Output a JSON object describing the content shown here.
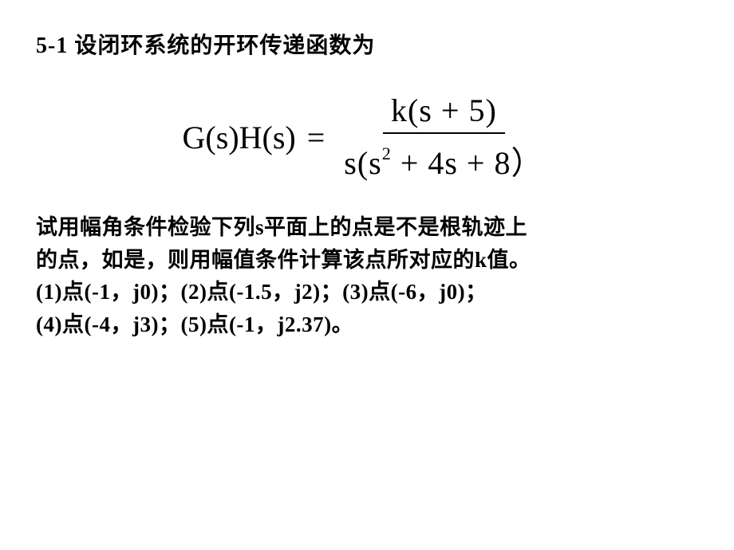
{
  "title": {
    "number": "5-1",
    "text": "设闭环系统的开环传递函数为"
  },
  "equation": {
    "lhs": "G(s)H(s)",
    "eq": "=",
    "numerator_pre": "k(s",
    "numerator_op": "+",
    "numerator_post": "5)",
    "denom_s": "s(s",
    "denom_sup": "2",
    "denom_mid": "+",
    "denom_4s": "4s",
    "denom_plus2": "+",
    "denom_end": "8）"
  },
  "body": {
    "line1a": "试用幅角条件检验下列",
    "line1b": "s",
    "line1c": "平面上的点是不是根轨迹上",
    "line2a": "的点，如是，则用幅值条件计算该点所对应的",
    "line2b": "k",
    "line2c": "值。",
    "line3a": "(1)",
    "line3b": "点",
    "line3c": "(-1，j0)",
    "line3d": "；",
    "line3e": "(2)",
    "line3f": "点",
    "line3g": "(-1.5，j2)",
    "line3h": "；",
    "line3i": "(3)",
    "line3j": "点",
    "line3k": "(-6，j0)",
    "line3l": "；",
    "line4a": "(4)",
    "line4b": "点",
    "line4c": "(-4，j3)",
    "line4d": "；",
    "line4e": "(5)",
    "line4f": "点",
    "line4g": "(-1，j2.37)",
    "line4h": "。"
  }
}
